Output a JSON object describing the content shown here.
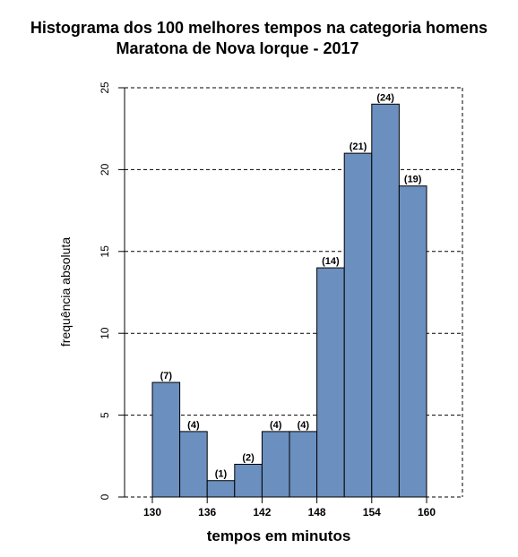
{
  "chart_data": {
    "type": "bar",
    "title_line1": "Histograma dos 100 melhores tempos na categoria homens",
    "title_line2": "Maratona de Nova Iorque - 2017",
    "xlabel": "tempos em minutos",
    "ylabel": "frequência absoluta",
    "bin_edges": [
      130,
      133,
      136,
      139,
      142,
      145,
      148,
      151,
      154,
      157,
      160
    ],
    "values": [
      7,
      4,
      1,
      2,
      4,
      4,
      14,
      21,
      24,
      19
    ],
    "value_labels": [
      "(7)",
      "(4)",
      "(1)",
      "(2)",
      "(4)",
      "(4)",
      "(14)",
      "(21)",
      "(24)",
      "(19)"
    ],
    "x_ticks": [
      130,
      136,
      142,
      148,
      154,
      160
    ],
    "y_ticks": [
      0,
      5,
      10,
      15,
      20,
      25
    ],
    "xlim": [
      130,
      160
    ],
    "ylim": [
      0,
      25
    ],
    "grid": "horizontal dashed",
    "bar_color": "#6b8fbf",
    "edge_color": "#000000"
  }
}
